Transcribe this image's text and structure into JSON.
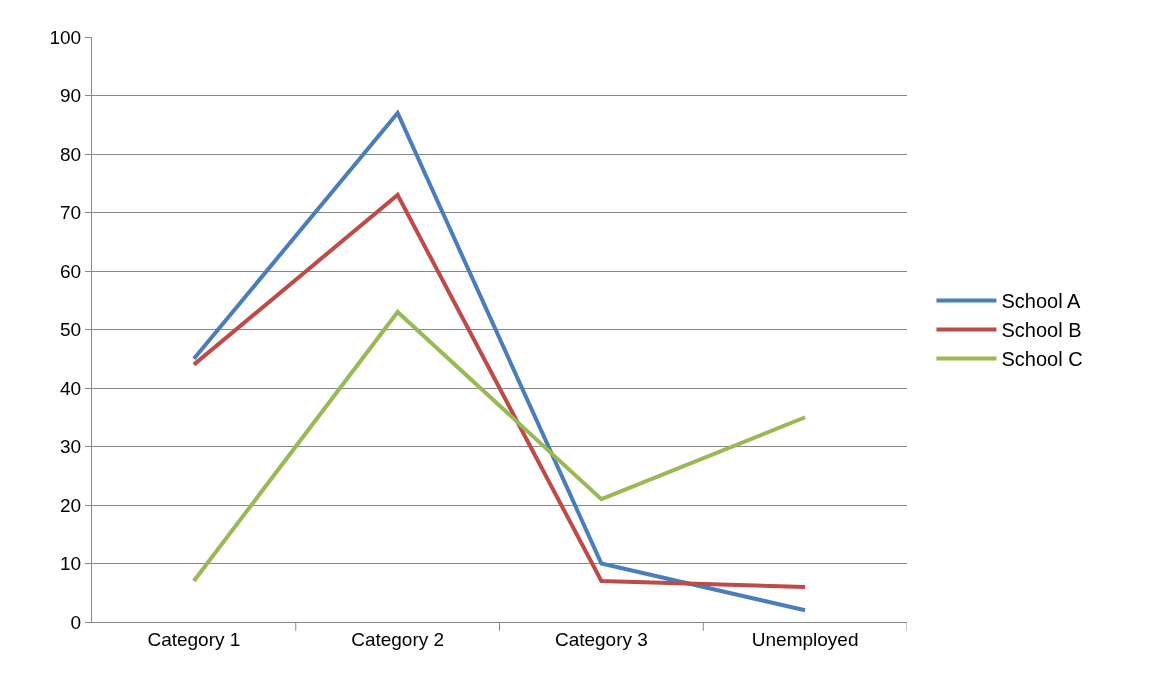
{
  "chart_data": {
    "type": "line",
    "categories": [
      "Category 1",
      "Category 2",
      "Category 3",
      "Unemployed"
    ],
    "series": [
      {
        "name": "School A",
        "color": "#4a7ebb",
        "values": [
          45,
          87,
          10,
          2
        ]
      },
      {
        "name": "School B",
        "color": "#be4b48",
        "values": [
          44,
          73,
          7,
          6
        ]
      },
      {
        "name": "School C",
        "color": "#98b954",
        "values": [
          7,
          53,
          21,
          35
        ]
      }
    ],
    "ylim": [
      0,
      100
    ],
    "yticks": [
      0,
      10,
      20,
      30,
      40,
      50,
      60,
      70,
      80,
      90,
      100
    ],
    "grid": "y",
    "legend": "right"
  }
}
